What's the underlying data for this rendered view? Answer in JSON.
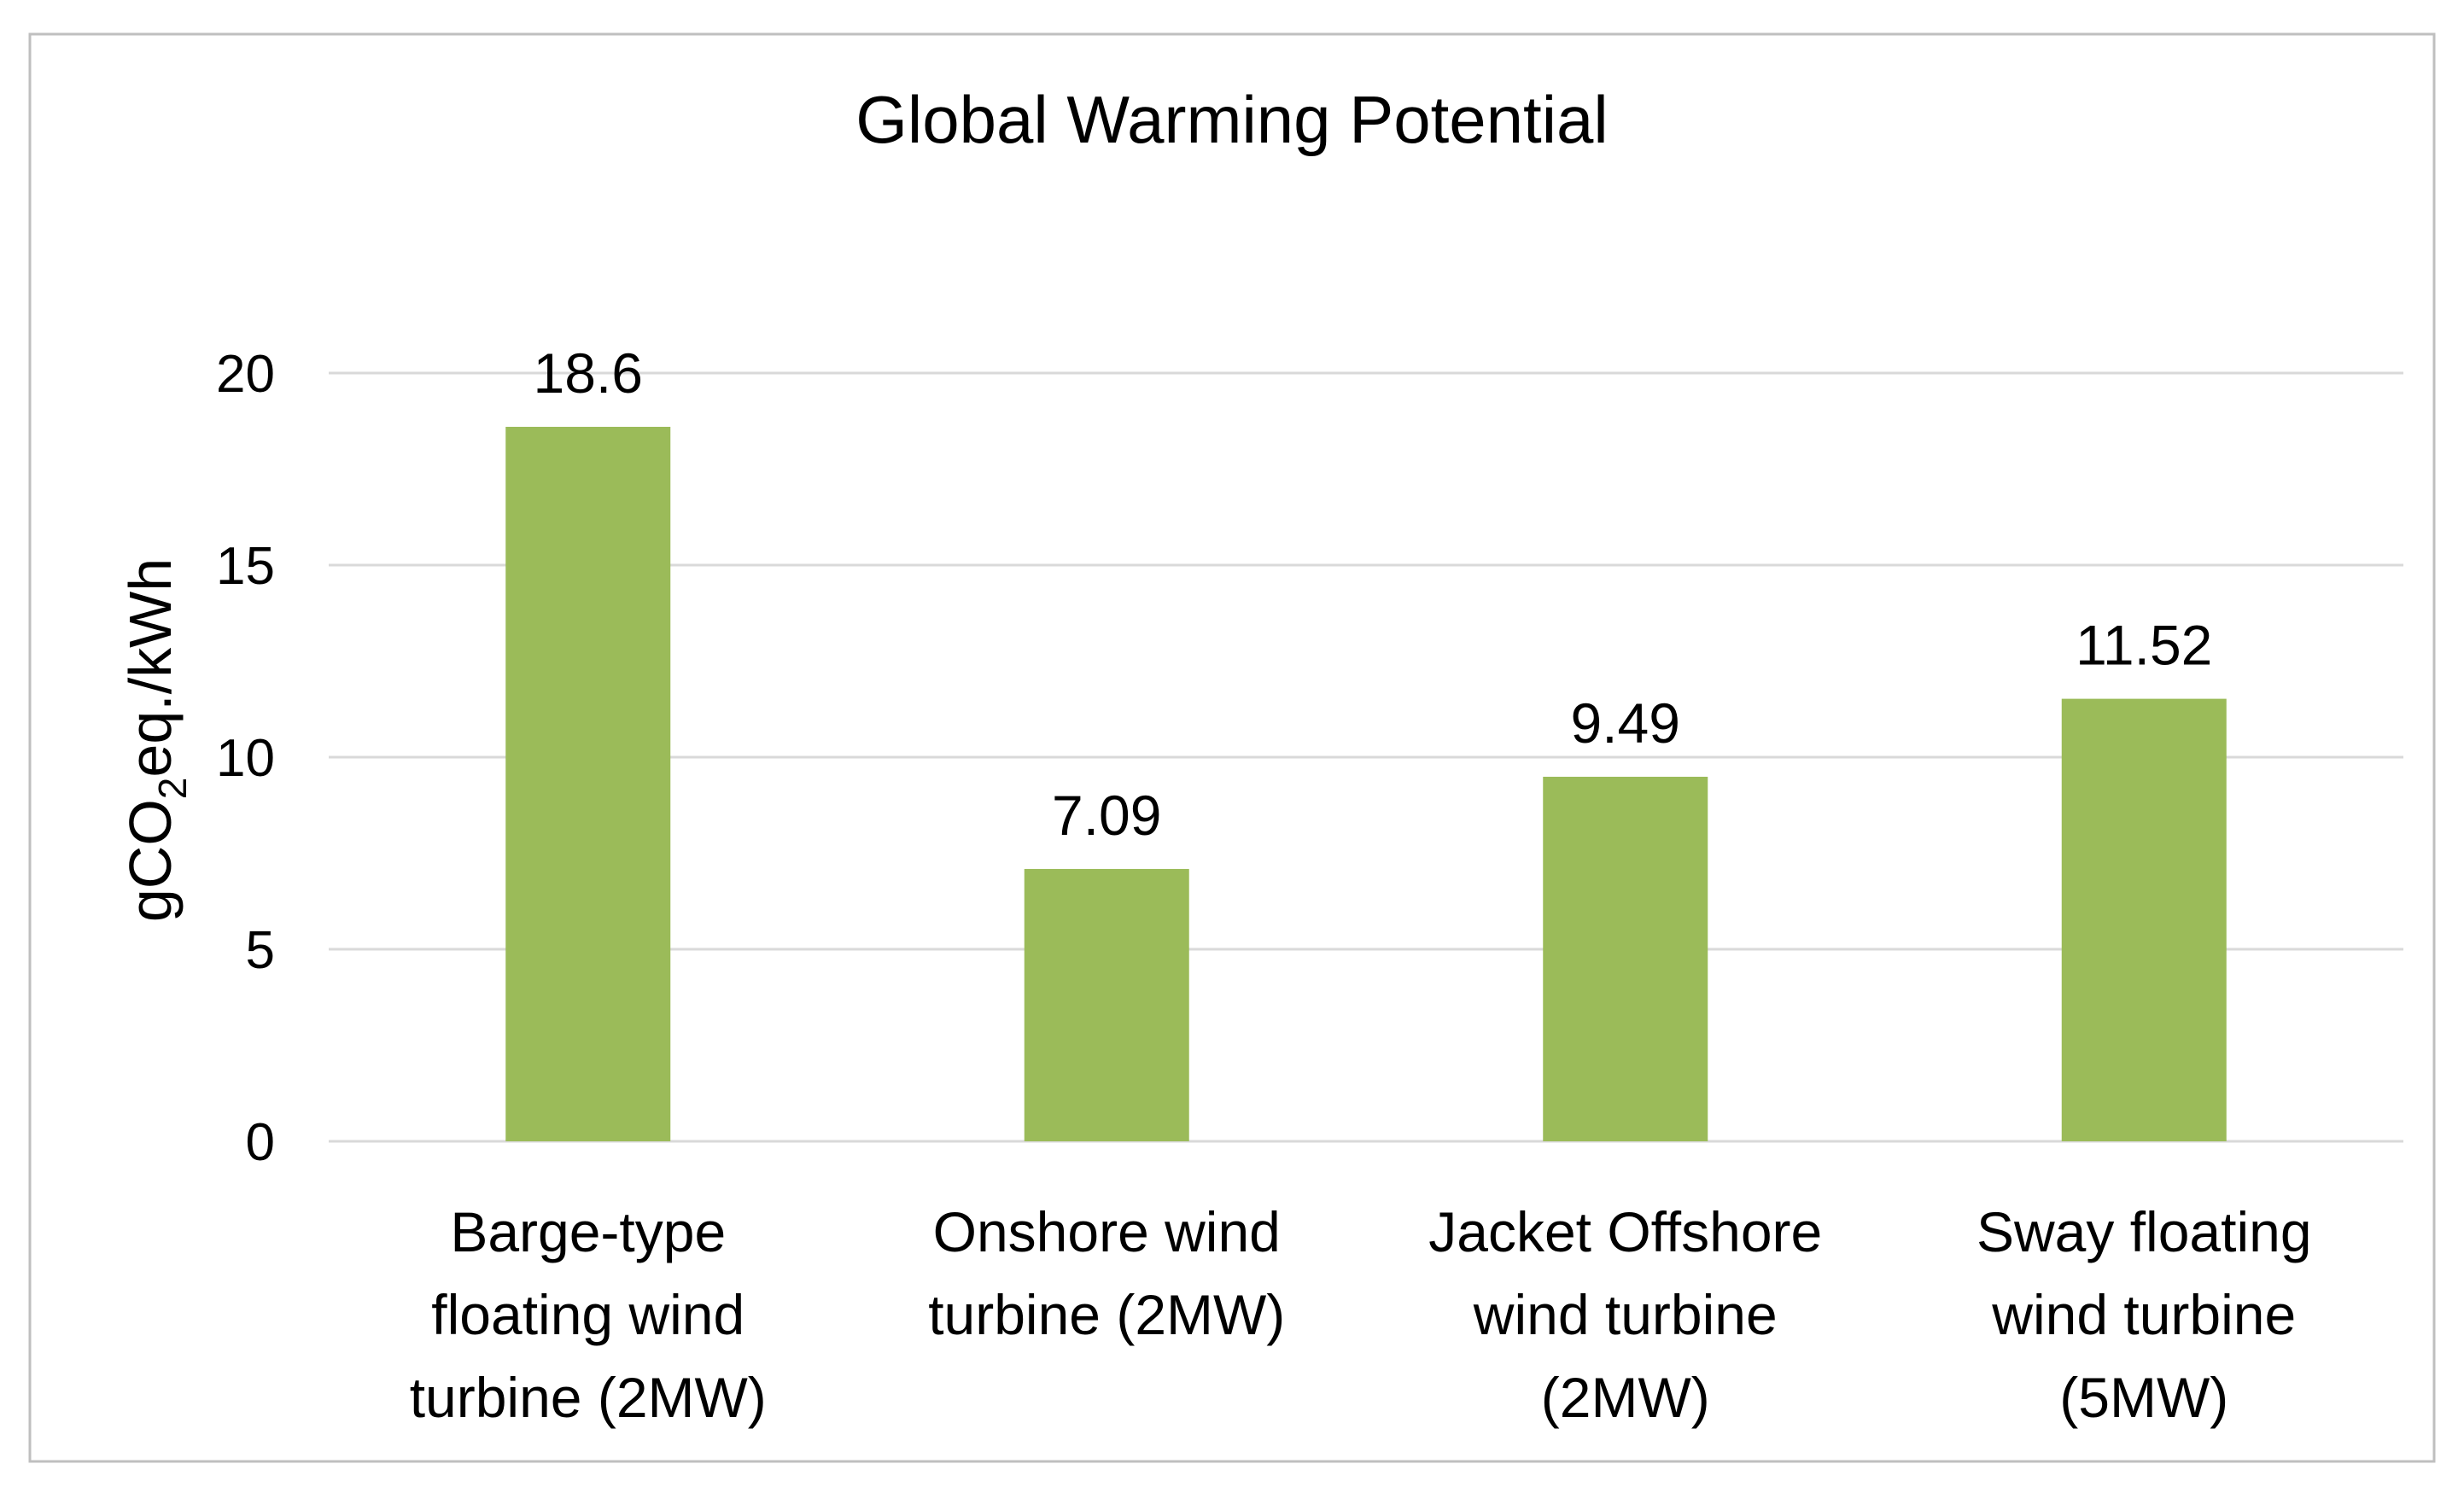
{
  "chart_data": {
    "type": "bar",
    "title": "Global Warming Potential",
    "xlabel": "",
    "ylabel": {
      "prefix": "gCO",
      "subscript": "2",
      "suffix": "eq./kWh"
    },
    "ylim": [
      0,
      20
    ],
    "yticks": [
      "0",
      "5",
      "10",
      "15",
      "20"
    ],
    "grid": true,
    "legend": "none",
    "categories": [
      [
        "Barge-type",
        "floating wind",
        "turbine (2MW)"
      ],
      [
        "Onshore wind",
        "turbine (2MW)"
      ],
      [
        "Jacket Offshore",
        "wind turbine",
        "(2MW)"
      ],
      [
        "Sway floating",
        "wind turbine",
        "(5MW)"
      ]
    ],
    "values": [
      18.6,
      7.09,
      9.49,
      11.52
    ],
    "data_labels": [
      "18.6",
      "7.09",
      "9.49",
      "11.52"
    ],
    "colors": {
      "bar": "#9BBB59",
      "grid": "#D9D9D9",
      "border": "#BFBFBF",
      "text": "#000000"
    }
  }
}
